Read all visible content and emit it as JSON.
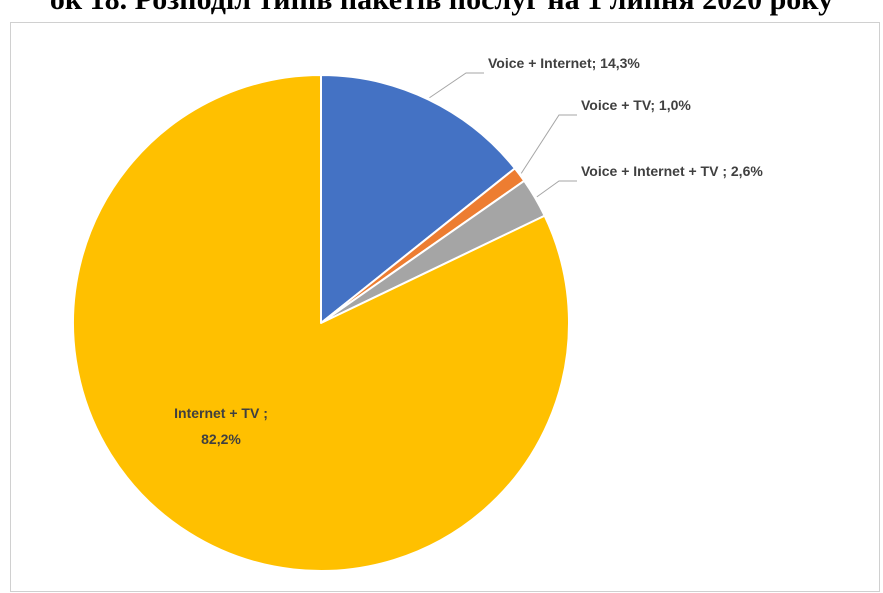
{
  "page_title": "ок 18. Розподіл типів пакетів послуг на 1 липня 2020 року",
  "chart_data": {
    "type": "pie",
    "title": "ок 18. Розподіл типів пакетів послуг на 1 липня 2020 року",
    "start_angle_deg": 0,
    "direction": "clockwise",
    "slices": [
      {
        "label": "Voice + Internet",
        "value": 14.3,
        "display": "Voice + Internet; 14,3%",
        "color": "#4472c4"
      },
      {
        "label": "Voice + TV",
        "value": 1.0,
        "display": "Voice + TV; 1,0%",
        "color": "#ed7d31"
      },
      {
        "label": "Voice + Internet + TV",
        "value": 2.6,
        "display": "Voice + Internet + TV ; 2,6%",
        "color": "#a5a5a5"
      },
      {
        "label": "Internet + TV",
        "value": 82.2,
        "display_line1": "Internet + TV ;",
        "display_line2": "82,2%",
        "color": "#ffc000"
      }
    ],
    "legend": "none",
    "slice_border_color": "#ffffff"
  }
}
